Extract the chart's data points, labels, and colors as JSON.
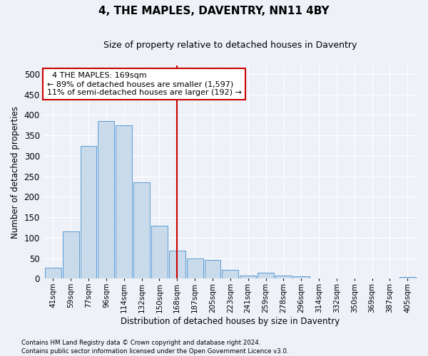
{
  "title": "4, THE MAPLES, DAVENTRY, NN11 4BY",
  "subtitle": "Size of property relative to detached houses in Daventry",
  "xlabel": "Distribution of detached houses by size in Daventry",
  "ylabel": "Number of detached properties",
  "bar_labels": [
    "41sqm",
    "59sqm",
    "77sqm",
    "96sqm",
    "114sqm",
    "132sqm",
    "150sqm",
    "168sqm",
    "187sqm",
    "205sqm",
    "223sqm",
    "241sqm",
    "259sqm",
    "278sqm",
    "296sqm",
    "314sqm",
    "332sqm",
    "350sqm",
    "369sqm",
    "387sqm",
    "405sqm"
  ],
  "bar_values": [
    27,
    116,
    325,
    385,
    375,
    235,
    130,
    68,
    50,
    45,
    22,
    8,
    15,
    7,
    5,
    1,
    1,
    1,
    0,
    0,
    4
  ],
  "bar_color": "#c9daea",
  "bar_edge_color": "#5b9bd5",
  "vline_x": 7.5,
  "vline_color": "#cc0000",
  "annotation_text": "  4 THE MAPLES: 169sqm  \n← 89% of detached houses are smaller (1,597)\n11% of semi-detached houses are larger (192) →",
  "annotation_box_color": "#ffffff",
  "annotation_box_edge": "#cc0000",
  "ylim": [
    0,
    520
  ],
  "yticks": [
    0,
    50,
    100,
    150,
    200,
    250,
    300,
    350,
    400,
    450,
    500
  ],
  "footer_line1": "Contains HM Land Registry data © Crown copyright and database right 2024.",
  "footer_line2": "Contains public sector information licensed under the Open Government Licence v3.0.",
  "background_color": "#eef2f8",
  "grid_color": "#ffffff",
  "title_fontsize": 11,
  "subtitle_fontsize": 9,
  "annotation_fontsize": 8
}
